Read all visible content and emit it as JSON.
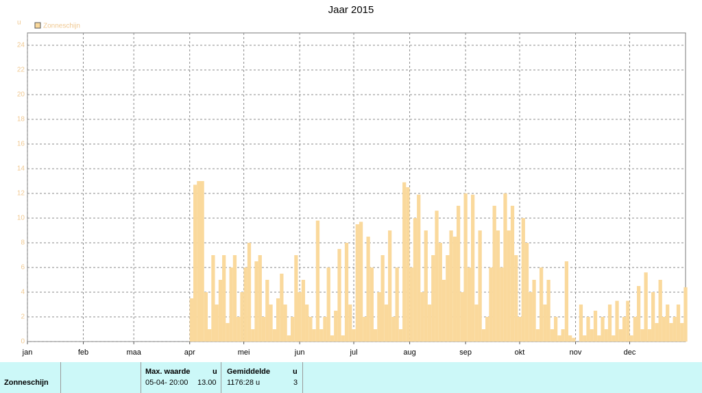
{
  "chart_data": {
    "type": "bar",
    "title": "Jaar 2015",
    "y_label": "u",
    "legend": "top-left",
    "series": [
      {
        "name": "Zonneschijn",
        "color": "#fad99c",
        "x": [
          91,
          93,
          95,
          97,
          99,
          101,
          103,
          105,
          107,
          109,
          111,
          113,
          115,
          117,
          119,
          121,
          123,
          125,
          127,
          129,
          131,
          133,
          135,
          137,
          139,
          141,
          143,
          145,
          147,
          149,
          151,
          153,
          155,
          157,
          159,
          161,
          163,
          165,
          167,
          169,
          171,
          173,
          175,
          177,
          179,
          181,
          183,
          185,
          187,
          189,
          191,
          193,
          195,
          197,
          199,
          201,
          203,
          205,
          207,
          209,
          211,
          213,
          215,
          217,
          219,
          221,
          223,
          225,
          227,
          229,
          231,
          233,
          235,
          237,
          239,
          241,
          243,
          245,
          247,
          249,
          251,
          253,
          255,
          257,
          259,
          261,
          263,
          265,
          267,
          269,
          271,
          273,
          275,
          277,
          279,
          281,
          283,
          285,
          287,
          289,
          291,
          293,
          295,
          297,
          299,
          301,
          303,
          305,
          307,
          309,
          311,
          313,
          315,
          317,
          319,
          321,
          323,
          325,
          327,
          329,
          331,
          333,
          335,
          337,
          339,
          341,
          343,
          345,
          347,
          349,
          351,
          353,
          355,
          357,
          359,
          361,
          363,
          365
        ],
        "values": [
          3.5,
          12.7,
          13,
          13,
          4,
          1,
          7,
          3,
          5,
          7,
          1.5,
          6,
          7,
          2,
          4,
          6,
          8,
          1,
          6.5,
          7,
          2,
          5,
          3,
          1,
          3.5,
          5.5,
          3,
          0.5,
          2,
          7,
          4,
          5,
          3,
          2,
          1,
          9.8,
          1,
          2,
          6,
          0.5,
          2.5,
          7.5,
          0.5,
          8,
          3,
          1,
          9.5,
          9.7,
          2,
          8.5,
          6,
          1,
          4,
          7,
          3,
          9,
          2,
          6,
          1,
          12.9,
          12.5,
          6,
          10,
          11.9,
          4,
          9,
          3,
          7,
          10.6,
          8,
          5,
          7,
          9,
          8.5,
          11,
          4,
          12,
          6,
          11.9,
          3,
          9,
          1,
          2,
          6,
          11,
          9,
          6,
          12,
          9,
          11,
          7,
          2,
          10,
          8,
          4,
          5,
          1,
          6,
          3,
          5,
          1,
          2,
          0.5,
          1,
          6.5,
          0.5,
          0.3,
          0,
          3,
          0.5,
          2,
          1,
          2.5,
          0.5,
          2,
          1,
          3,
          0.5,
          3.3,
          1,
          2,
          3.3,
          0.5,
          2,
          4.5,
          1,
          5.6,
          1,
          4,
          1.5,
          5,
          2,
          3,
          1.5,
          2,
          3,
          1.5,
          4.4
        ]
      }
    ],
    "xlim": [
      1,
      366
    ],
    "xticks": [
      {
        "value": 1,
        "label": "jan"
      },
      {
        "value": 32,
        "label": "feb"
      },
      {
        "value": 60,
        "label": "maa"
      },
      {
        "value": 91,
        "label": "apr"
      },
      {
        "value": 121,
        "label": "mei"
      },
      {
        "value": 152,
        "label": "jun"
      },
      {
        "value": 182,
        "label": "jul"
      },
      {
        "value": 213,
        "label": "aug"
      },
      {
        "value": 244,
        "label": "sep"
      },
      {
        "value": 274,
        "label": "okt"
      },
      {
        "value": 305,
        "label": "nov"
      },
      {
        "value": 335,
        "label": "dec"
      }
    ],
    "ylim": [
      0,
      25
    ],
    "yticks": [
      0,
      2,
      4,
      6,
      8,
      10,
      12,
      14,
      16,
      18,
      20,
      22,
      24
    ],
    "grid": true
  },
  "table": {
    "row_label": "Zonneschijn",
    "max_header": "Max. waarde",
    "max_unit": "u",
    "max_time": "05-04- 20:00",
    "max_value": "13.00",
    "avg_header": "Gemiddelde",
    "avg_unit": "u",
    "avg_total": "1176:28 u",
    "avg_value": "3"
  }
}
